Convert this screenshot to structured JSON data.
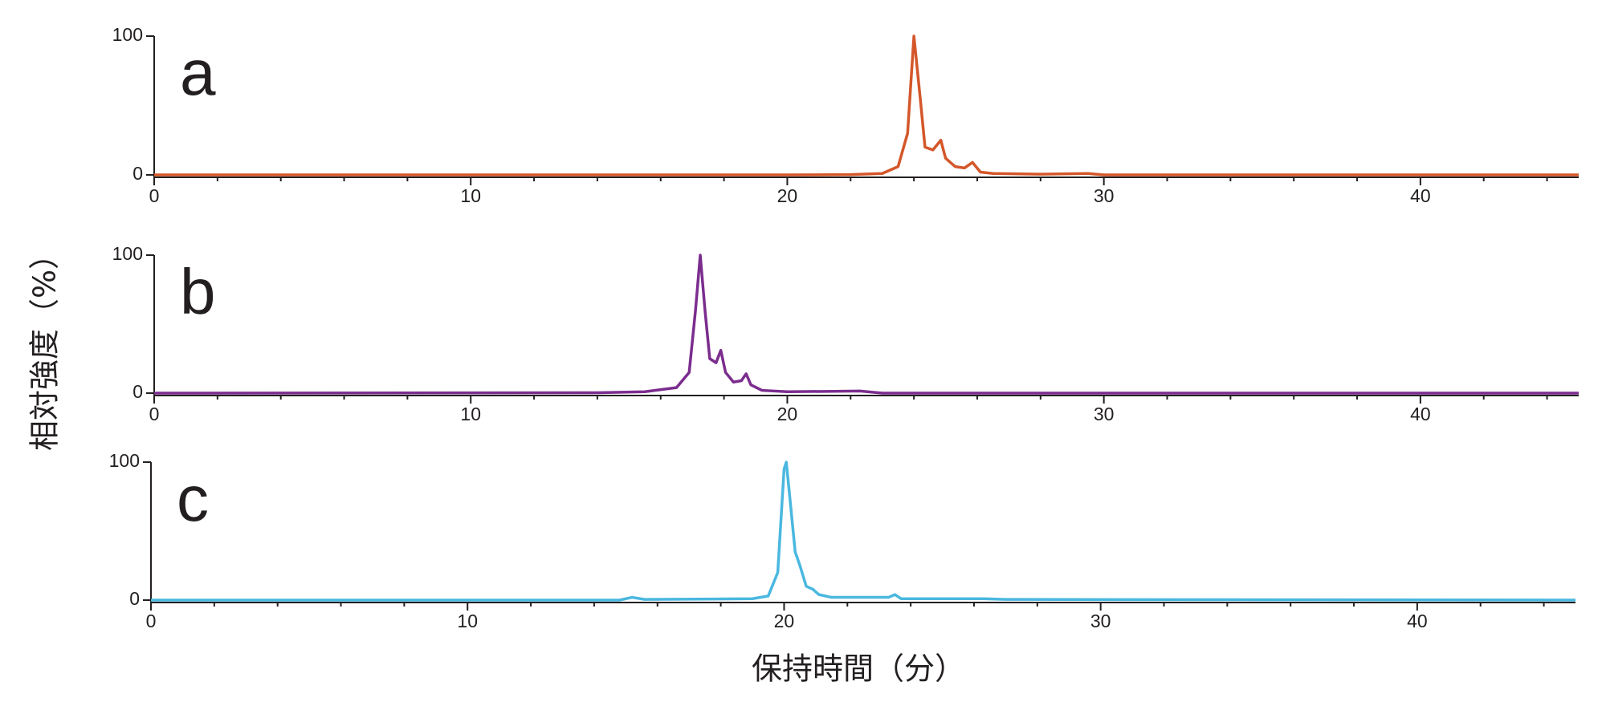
{
  "x_label": "保持時間（分）",
  "y_label": "相対強度（%）",
  "chart_data": [
    {
      "type": "line",
      "label": "a",
      "color": "#d4572a",
      "x": [
        0,
        20,
        22,
        23,
        23.5,
        23.8,
        24.0,
        24.2,
        24.35,
        24.6,
        24.85,
        25.0,
        25.3,
        25.6,
        25.85,
        26.1,
        26.5,
        28,
        29.5,
        30,
        45
      ],
      "values": [
        0,
        0,
        0.2,
        1,
        6,
        30,
        100,
        55,
        20,
        18,
        25,
        12,
        6,
        5,
        9,
        2,
        1,
        0.5,
        1,
        0,
        0
      ],
      "xlim": [
        0,
        45
      ],
      "ylim": [
        0,
        100
      ],
      "xticks": [
        0,
        10,
        20,
        30,
        40
      ],
      "xminorticks": [
        2,
        4,
        6,
        8,
        12,
        14,
        16,
        18,
        22,
        24,
        26,
        28,
        32,
        34,
        36,
        38,
        42,
        44
      ],
      "yticks": [
        0,
        100
      ]
    },
    {
      "type": "line",
      "label": "b",
      "color": "#7b2d8e",
      "x": [
        0,
        14,
        15.5,
        16.5,
        16.9,
        17.1,
        17.25,
        17.4,
        17.55,
        17.75,
        17.9,
        18.05,
        18.3,
        18.55,
        18.7,
        18.85,
        19.2,
        20,
        22.3,
        23,
        45
      ],
      "values": [
        0,
        0.3,
        1,
        4,
        15,
        60,
        100,
        60,
        25,
        22,
        31,
        15,
        8,
        9,
        14,
        6,
        2,
        1,
        1.5,
        0,
        0
      ],
      "xlim": [
        0,
        45
      ],
      "ylim": [
        0,
        100
      ],
      "xticks": [
        0,
        10,
        20,
        30,
        40
      ],
      "xminorticks": [
        2,
        4,
        6,
        8,
        12,
        14,
        16,
        18,
        22,
        24,
        26,
        28,
        32,
        34,
        36,
        38,
        42,
        44
      ],
      "yticks": [
        0,
        100
      ]
    },
    {
      "type": "line",
      "label": "c",
      "color": "#4ab8e0",
      "x": [
        0,
        14.8,
        15.2,
        15.6,
        19,
        19.5,
        19.8,
        20.0,
        20.07,
        20.2,
        20.35,
        20.5,
        20.7,
        20.9,
        21.1,
        21.5,
        22.5,
        23.3,
        23.5,
        23.7,
        26.3,
        27,
        45
      ],
      "values": [
        0,
        0,
        2,
        0.5,
        1,
        3,
        20,
        95,
        100,
        70,
        35,
        25,
        10,
        8,
        4,
        2,
        2,
        2,
        4,
        1,
        1,
        0.5,
        0
      ],
      "xlim": [
        0,
        45
      ],
      "ylim": [
        0,
        100
      ],
      "xticks": [
        0,
        10,
        20,
        30,
        40
      ],
      "xminorticks": [
        2,
        4,
        6,
        8,
        12,
        14,
        16,
        18,
        22,
        24,
        26,
        28,
        32,
        34,
        36,
        38,
        42,
        44
      ],
      "yticks": [
        0,
        100
      ]
    }
  ]
}
